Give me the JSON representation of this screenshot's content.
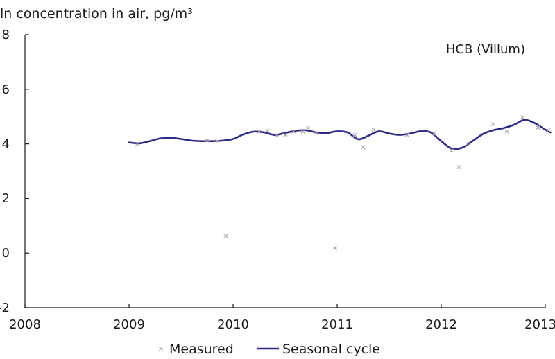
{
  "chart_data": {
    "type": "line",
    "ylabel": "ln concentration in air, pg/m³",
    "annotation": "HCB (Villum)",
    "xlim": [
      2008,
      2013
    ],
    "ylim": [
      -2,
      8
    ],
    "x_ticks": [
      "2008",
      "2009",
      "2010",
      "2011",
      "2012",
      "2013"
    ],
    "y_ticks": [
      "-2",
      "0",
      "2",
      "4",
      "6",
      "8"
    ],
    "grid": false,
    "legend_position": "bottom",
    "series": [
      {
        "name": "Measured",
        "mark": "x",
        "color": "#a6a6a6",
        "points": [
          [
            2009.08,
            4.0
          ],
          [
            2009.75,
            4.12
          ],
          [
            2009.85,
            4.1
          ],
          [
            2009.93,
            0.62
          ],
          [
            2010.25,
            4.45
          ],
          [
            2010.33,
            4.48
          ],
          [
            2010.42,
            4.32
          ],
          [
            2010.5,
            4.33
          ],
          [
            2010.58,
            4.45
          ],
          [
            2010.67,
            4.45
          ],
          [
            2010.72,
            4.58
          ],
          [
            2010.8,
            4.4
          ],
          [
            2010.98,
            0.18
          ],
          [
            2011.17,
            4.33
          ],
          [
            2011.25,
            3.88
          ],
          [
            2011.35,
            4.52
          ],
          [
            2011.67,
            4.33
          ],
          [
            2011.93,
            4.38
          ],
          [
            2012.1,
            3.75
          ],
          [
            2012.17,
            3.15
          ],
          [
            2012.25,
            4.0
          ],
          [
            2012.5,
            4.72
          ],
          [
            2012.63,
            4.45
          ],
          [
            2012.78,
            4.97
          ],
          [
            2012.93,
            4.6
          ],
          [
            2013.03,
            4.5
          ]
        ]
      },
      {
        "name": "Seasonal cycle",
        "color": "#2e2a88",
        "x": [
          2009.0,
          2009.1,
          2009.2,
          2009.3,
          2009.4,
          2009.5,
          2009.6,
          2009.7,
          2009.8,
          2009.9,
          2010.0,
          2010.1,
          2010.2,
          2010.3,
          2010.4,
          2010.5,
          2010.6,
          2010.7,
          2010.8,
          2010.9,
          2011.0,
          2011.1,
          2011.2,
          2011.3,
          2011.4,
          2011.5,
          2011.6,
          2011.7,
          2011.8,
          2011.9,
          2012.0,
          2012.1,
          2012.2,
          2012.3,
          2012.4,
          2012.5,
          2012.6,
          2012.7,
          2012.8,
          2012.9,
          2013.0,
          2013.05
        ],
        "y": [
          4.05,
          4.02,
          4.1,
          4.2,
          4.22,
          4.18,
          4.12,
          4.1,
          4.1,
          4.12,
          4.18,
          4.35,
          4.45,
          4.42,
          4.33,
          4.4,
          4.48,
          4.5,
          4.42,
          4.4,
          4.46,
          4.42,
          4.17,
          4.3,
          4.46,
          4.38,
          4.33,
          4.38,
          4.46,
          4.42,
          4.1,
          3.83,
          3.86,
          4.1,
          4.36,
          4.5,
          4.58,
          4.7,
          4.88,
          4.76,
          4.52,
          4.42
        ]
      }
    ]
  }
}
